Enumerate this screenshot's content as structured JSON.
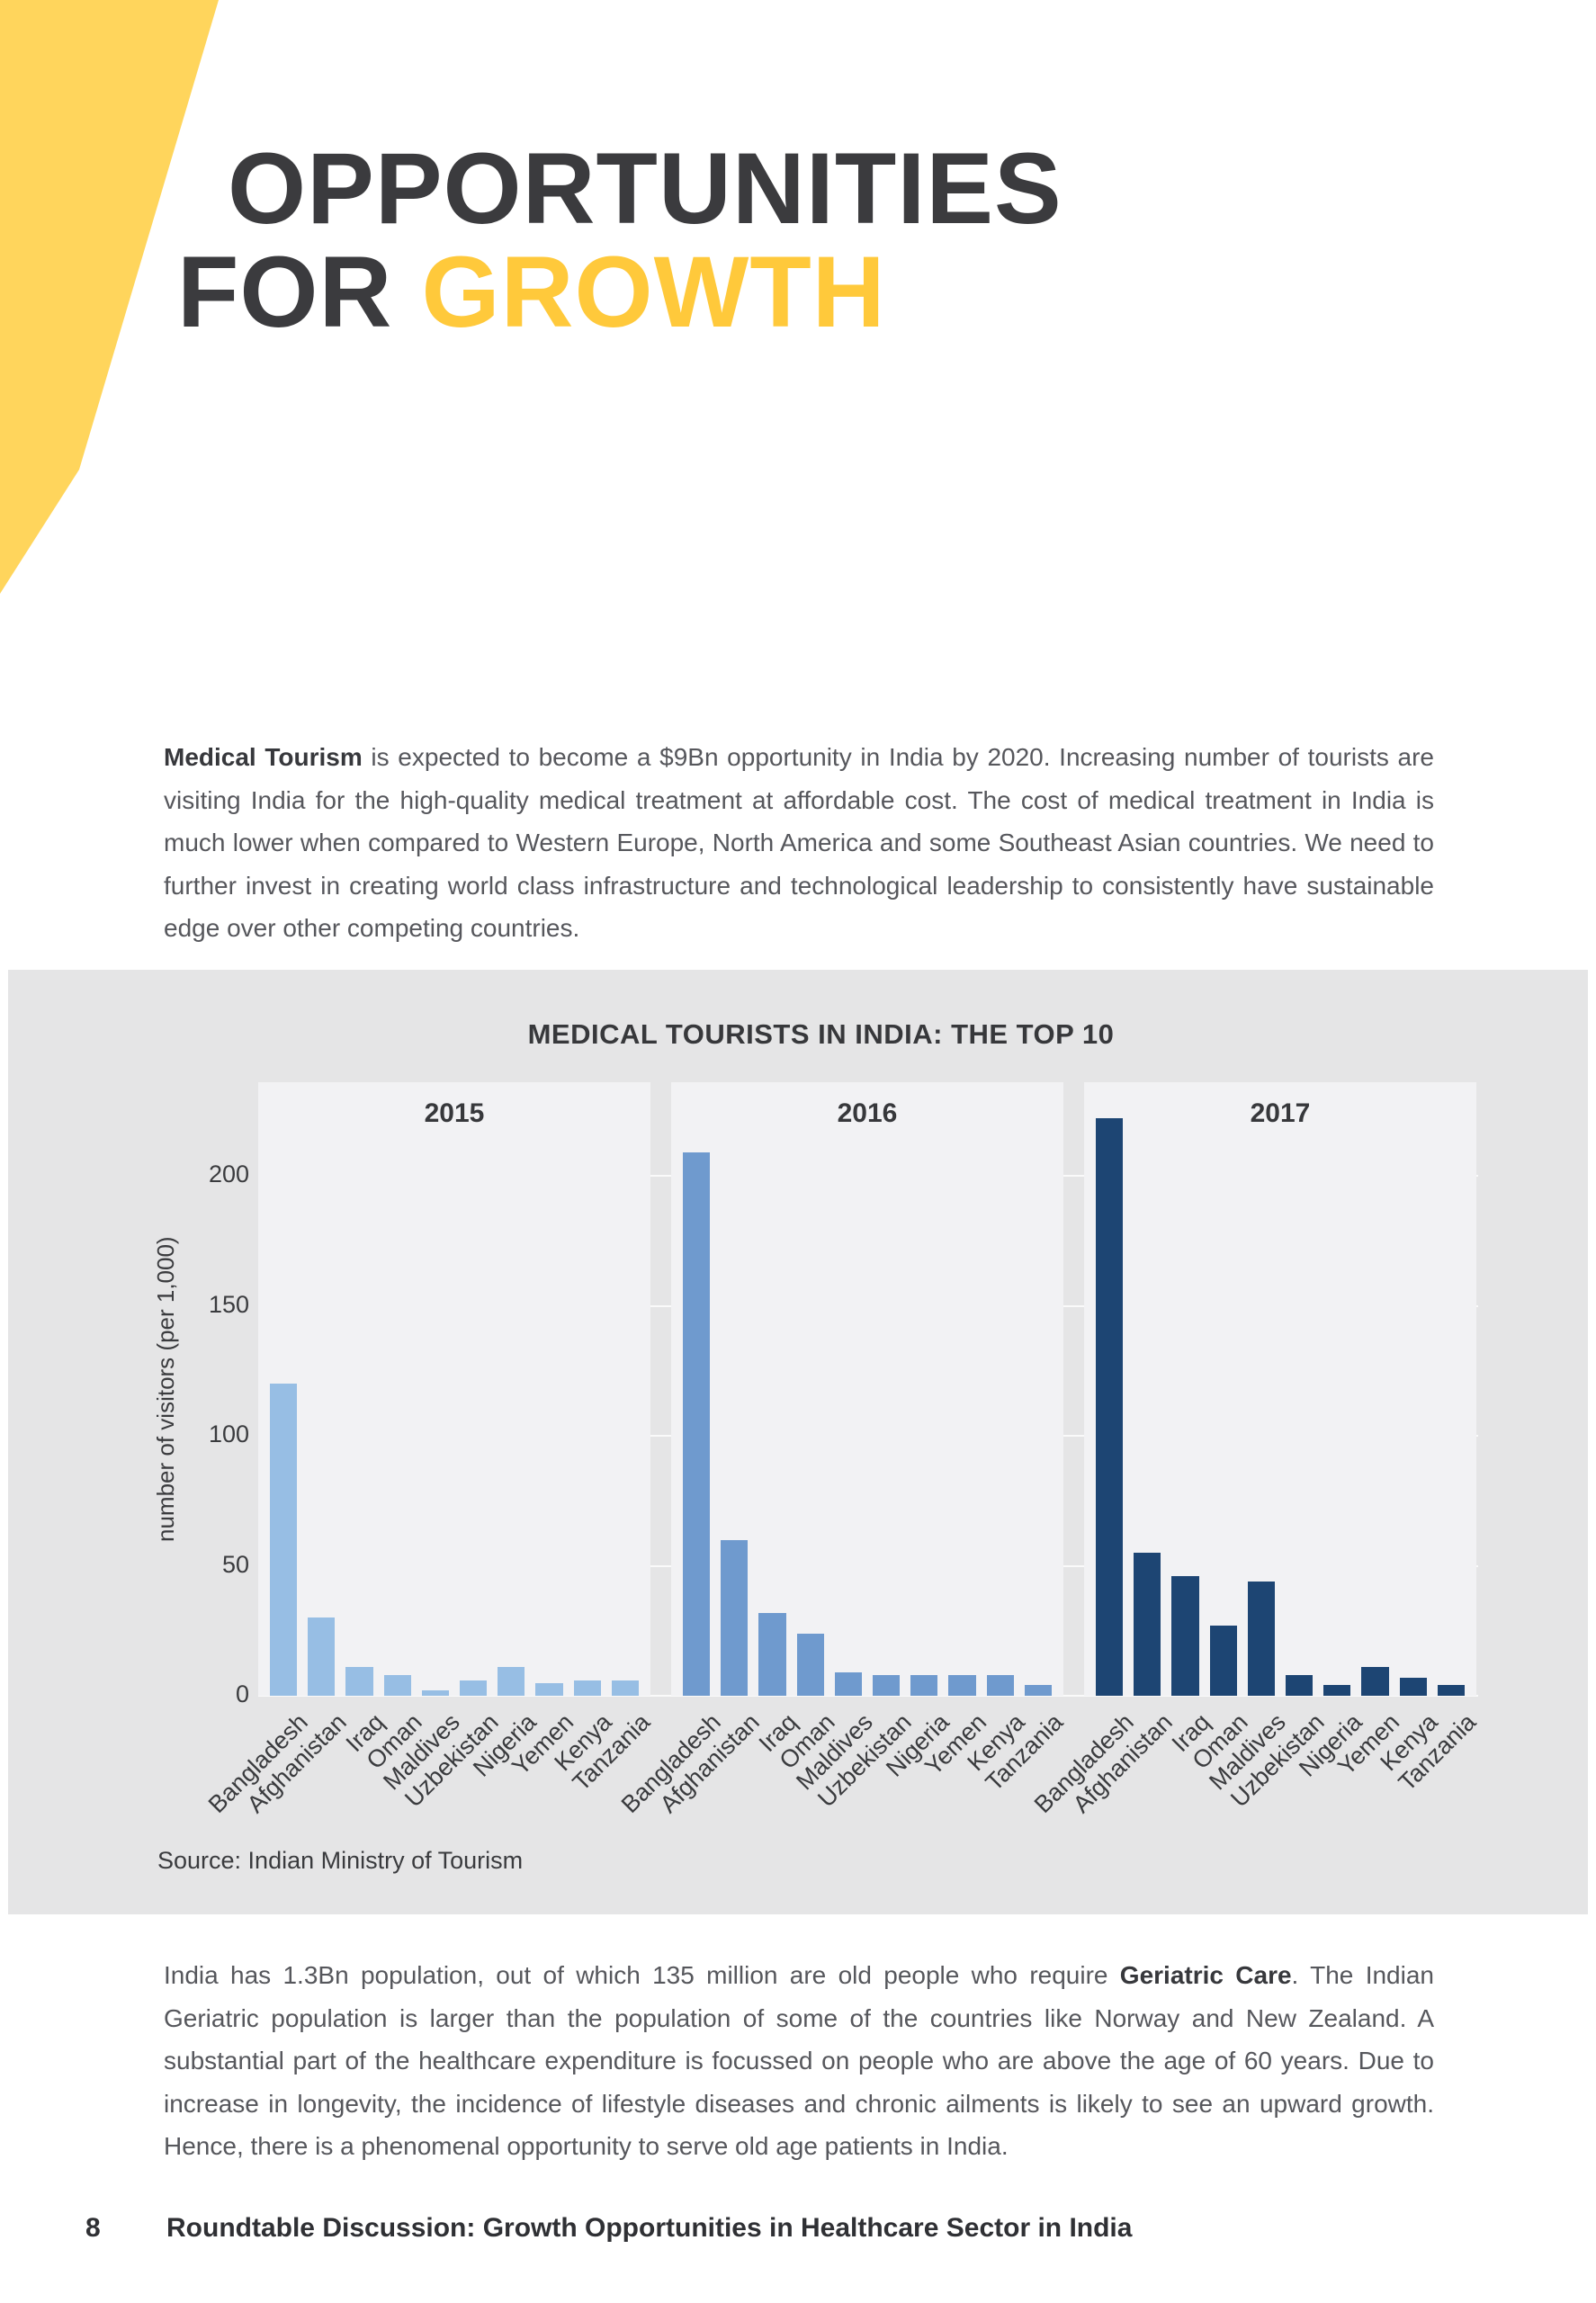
{
  "header": {
    "line1": "OPPORTUNITIES",
    "line2_dark": "FOR ",
    "line2_accent": "GROWTH",
    "accent_color": "#FFC93B",
    "band_color": "#FFD55C"
  },
  "intro": {
    "bold": "Medical Tourism",
    "rest": " is expected to become a $9Bn opportunity in India by 2020. Increasing number of tourists are visiting India for the high-quality medical treatment at affordable cost. The cost of medical treatment in India is much lower when compared to Western Europe, North America and some Southeast Asian countries. We need to further invest in creating world class infrastructure and technological leadership to consistently have sustainable edge over other competing countries."
  },
  "chart": {
    "title": "MEDICAL TOURISTS IN INDIA: THE TOP 10",
    "source": "Source: Indian Ministry of Tourism",
    "ylabel": "number of visitors (per 1,000)"
  },
  "chart_data": {
    "type": "bar",
    "title": "MEDICAL TOURISTS IN INDIA: THE TOP 10",
    "ylabel": "number of visitors (per 1,000)",
    "categories": [
      "Bangladesh",
      "Afghanistan",
      "Iraq",
      "Oman",
      "Maldives",
      "Uzbekistan",
      "Nigeria",
      "Yemen",
      "Kenya",
      "Tanzania"
    ],
    "series": [
      {
        "name": "2015",
        "color": "#97BEE4",
        "values": [
          120,
          30,
          11,
          8,
          2,
          6,
          11,
          5,
          6,
          6
        ]
      },
      {
        "name": "2016",
        "color": "#6F9ACE",
        "values": [
          209,
          60,
          32,
          24,
          9,
          8,
          8,
          8,
          8,
          4
        ]
      },
      {
        "name": "2017",
        "color": "#1D4573",
        "values": [
          222,
          55,
          46,
          27,
          44,
          8,
          4,
          11,
          7,
          4
        ]
      }
    ],
    "yticks": [
      0,
      50,
      100,
      150,
      200
    ],
    "ylim": [
      0,
      236
    ],
    "grid": true,
    "legend": "none",
    "layout": "three facet panels by year, shared y axis",
    "panel_bg": "#F2F2F4",
    "section_bg": "#E5E5E6"
  },
  "geriatric": {
    "before": "India has 1.3Bn population, out of which 135 million are old people who require ",
    "bold": "Geriatric Care",
    "after": ". The Indian Geriatric population is larger than the population of some of the countries like Norway and New Zealand. A substantial part of the healthcare expenditure is focussed on people who are above the age of 60 years. Due to increase in longevity, the incidence of lifestyle diseases and chronic ailments is likely to see an upward growth. Hence, there is a phenomenal opportunity to serve old age patients in India."
  },
  "footer": {
    "page_number": "8",
    "text": "Roundtable Discussion: Growth Opportunities in Healthcare Sector in India"
  }
}
